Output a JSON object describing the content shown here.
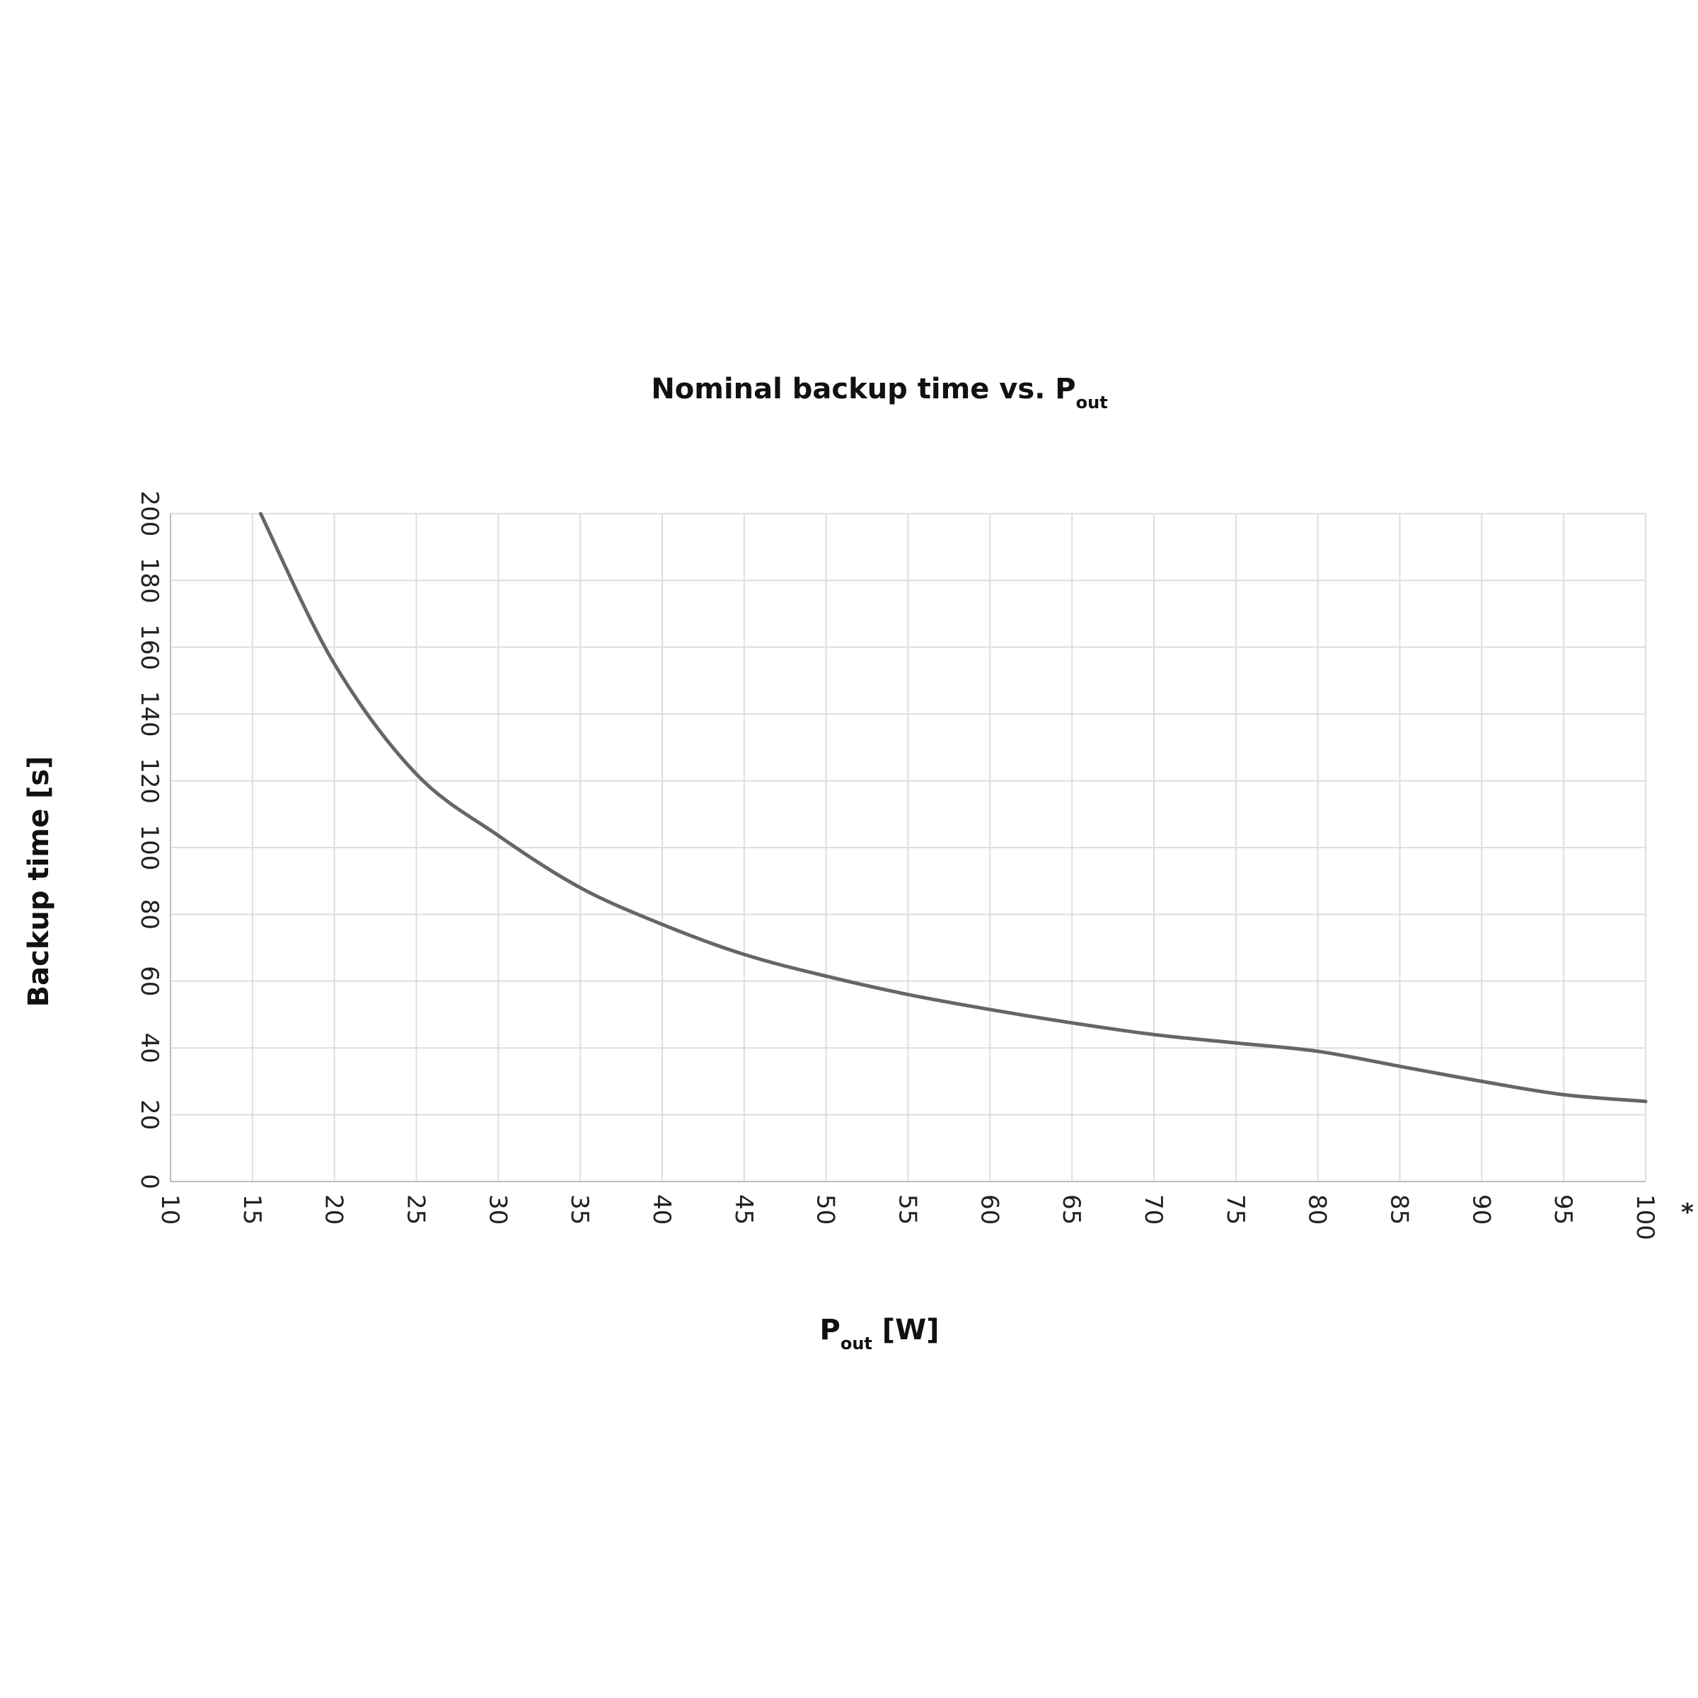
{
  "chart_data": {
    "type": "line",
    "title": {
      "text": "Nominal backup time vs. P",
      "subscript": "out"
    },
    "x_label": {
      "text": "P",
      "subscript": "out",
      "suffix": " [W]"
    },
    "y_label": "Backup time [s]",
    "annotation": "*",
    "x": [
      15.5,
      20,
      25,
      30,
      35,
      40,
      45,
      50,
      55,
      60,
      65,
      70,
      75,
      80,
      85,
      90,
      95,
      100
    ],
    "series": [
      {
        "color": "#666666",
        "values": [
          200,
          155,
          122,
          103.6,
          88,
          77,
          68,
          61.5,
          56,
          51.5,
          47.5,
          44,
          41.5,
          39,
          34.5,
          30,
          26,
          24
        ]
      }
    ],
    "xlim": [
      10,
      100
    ],
    "xticks": [
      10,
      15,
      20,
      25,
      30,
      35,
      40,
      45,
      50,
      55,
      60,
      65,
      70,
      75,
      80,
      85,
      90,
      95,
      100
    ],
    "ylim": [
      0,
      200
    ],
    "yticks": [
      0,
      20,
      40,
      60,
      80,
      100,
      120,
      140,
      160,
      180,
      200
    ],
    "grid": true
  }
}
